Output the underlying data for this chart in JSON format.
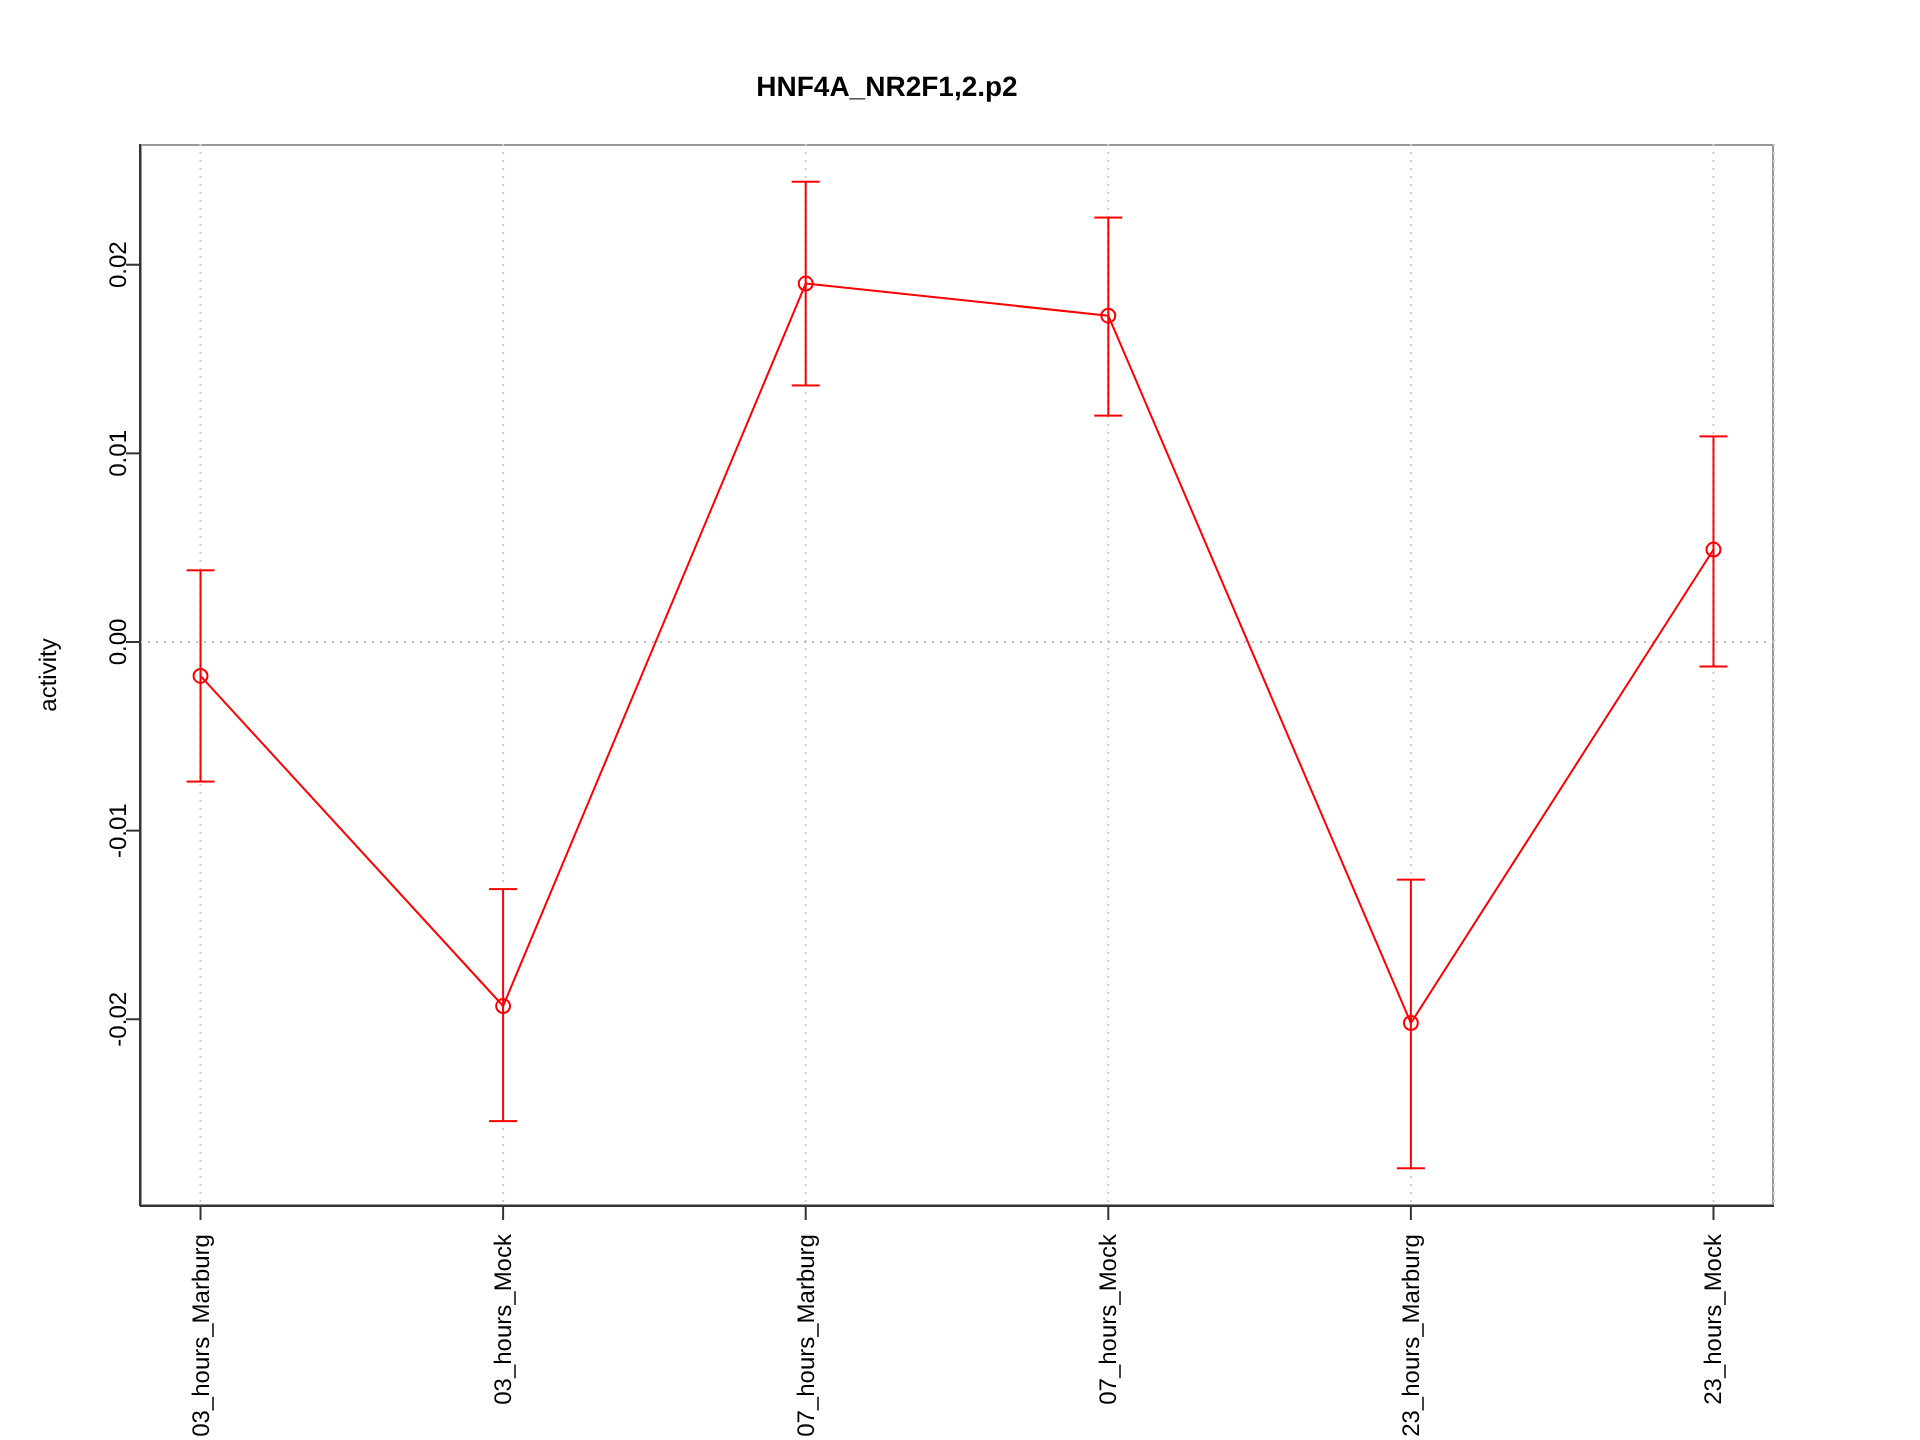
{
  "chart_data": {
    "type": "line",
    "title": "HNF4A_NR2F1,2.p2",
    "ylabel": "activity",
    "categories": [
      "03_hours_Marburg",
      "03_hours_Mock",
      "07_hours_Marburg",
      "07_hours_Mock",
      "23_hours_Marburg",
      "23_hours_Mock"
    ],
    "values": [
      -0.0018,
      -0.0193,
      0.019,
      0.0173,
      -0.0202,
      0.0049
    ],
    "errors": [
      [
        -0.0074,
        0.0038
      ],
      [
        -0.0254,
        -0.0131
      ],
      [
        0.0136,
        0.0244
      ],
      [
        0.012,
        0.0225
      ],
      [
        -0.0279,
        -0.0126
      ],
      [
        -0.0013,
        0.0109
      ]
    ],
    "color": "#ff0000",
    "marker": "circle",
    "line_style": "solid",
    "ylim": [
      -0.0299,
      0.0264
    ],
    "yticks": [
      -0.02,
      -0.01,
      {
        "value": 0,
        "label": "0.00"
      },
      0.01,
      0.02
    ],
    "grid": "x",
    "ref_lines": [
      {
        "axis": "y",
        "value": 0,
        "color": "#c0c0c0",
        "line_style": "dotted"
      }
    ]
  }
}
